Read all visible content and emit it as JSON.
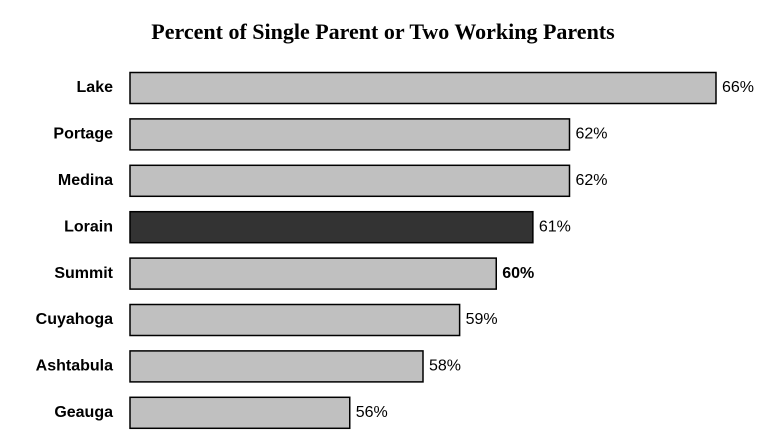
{
  "chart_data": {
    "type": "bar",
    "orientation": "horizontal",
    "title": "Percent of Single Parent or Two Working Parents",
    "categories": [
      "Lake",
      "Portage",
      "Medina",
      "Lorain",
      "Summit",
      "Cuyahoga",
      "Ashtabula",
      "Geauga"
    ],
    "values": [
      66,
      62,
      62,
      61,
      60,
      59,
      58,
      56
    ],
    "value_labels": [
      "66%",
      "62%",
      "62%",
      "61%",
      "60%",
      "59%",
      "58%",
      "56%"
    ],
    "colors": [
      "#c0c0c0",
      "#c0c0c0",
      "#c0c0c0",
      "#333333",
      "#c0c0c0",
      "#c0c0c0",
      "#c0c0c0",
      "#c0c0c0"
    ],
    "bold_value_labels": [
      false,
      false,
      false,
      false,
      true,
      false,
      false,
      false
    ],
    "xlim": [
      50,
      66
    ]
  }
}
